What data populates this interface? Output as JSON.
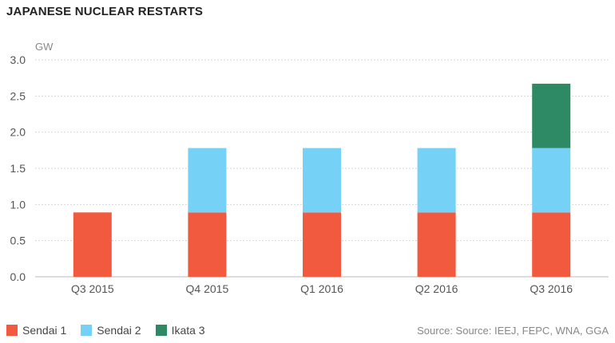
{
  "chart_data": {
    "type": "bar",
    "stacked": true,
    "title": "JAPANESE NUCLEAR RESTARTS",
    "ylabel": "GW",
    "ylim": [
      0,
      3.0
    ],
    "yticks": [
      "0.0",
      "0.5",
      "1.0",
      "1.5",
      "2.0",
      "2.5",
      "3.0"
    ],
    "categories": [
      "Q3 2015",
      "Q4 2015",
      "Q1 2016",
      "Q2 2016",
      "Q3 2016"
    ],
    "series": [
      {
        "name": "Sendai 1",
        "color": "#f25a40",
        "values": [
          0.89,
          0.89,
          0.89,
          0.89,
          0.89
        ]
      },
      {
        "name": "Sendai 2",
        "color": "#75d1f5",
        "values": [
          0,
          0.89,
          0.89,
          0.89,
          0.89
        ]
      },
      {
        "name": "Ikata 3",
        "color": "#2e8a64",
        "values": [
          0,
          0,
          0,
          0,
          0.89
        ]
      }
    ],
    "grid": true,
    "legend_position": "bottom-left",
    "source": "Source: Source: IEEJ, FEPC, WNA, GGA"
  }
}
